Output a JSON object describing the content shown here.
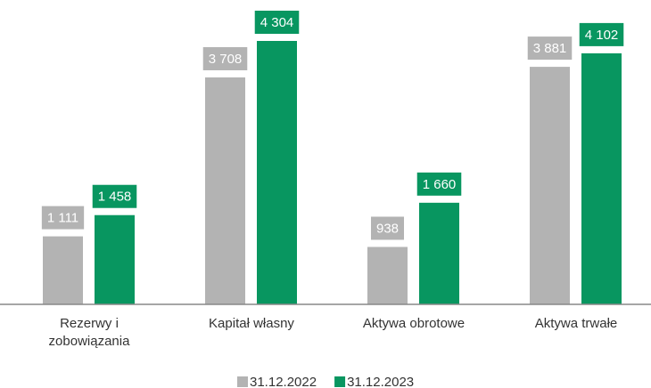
{
  "chart_data": {
    "type": "bar",
    "categories": [
      "Rezerwy i zobowiązania",
      "Kapitał własny",
      "Aktywa obrotowe",
      "Aktywa trwałe"
    ],
    "series": [
      {
        "name": "31.12.2022",
        "color": "#b3b3b3",
        "values": [
          1111,
          3708,
          938,
          3881
        ],
        "value_labels": [
          "1 111",
          "3 708",
          "938",
          "3 881"
        ]
      },
      {
        "name": "31.12.2023",
        "color": "#089660",
        "values": [
          1458,
          4304,
          1660,
          4102
        ],
        "value_labels": [
          "1 458",
          "4 304",
          "1 660",
          "4 102"
        ]
      }
    ]
  }
}
